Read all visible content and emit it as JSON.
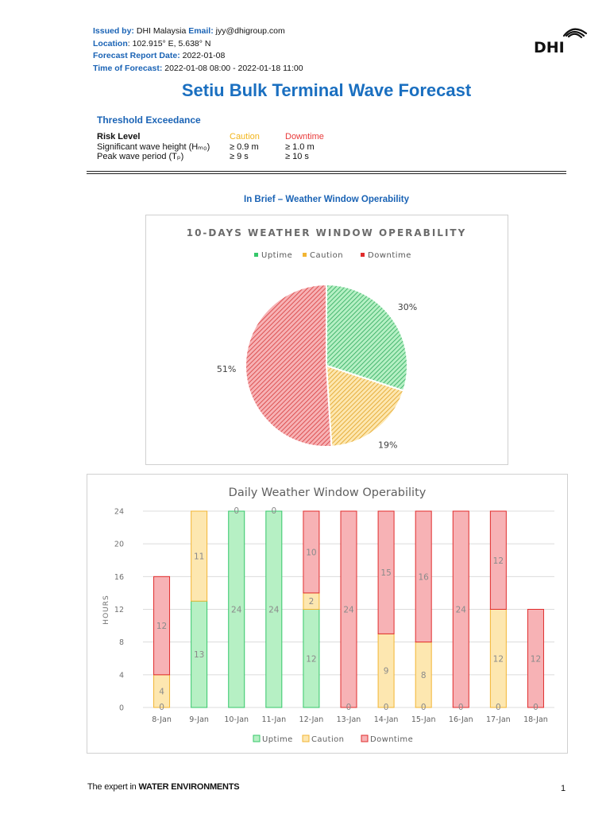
{
  "header": {
    "issued_by_label": "Issued by:",
    "issued_by": " DHI Malaysia ",
    "email_label": "Email:",
    "email": " jyy@dhigroup.com",
    "location_label": "Location",
    "location": ": 102.915° E, 5.638° N",
    "report_date_label": "Forecast Report Date:",
    "report_date": " 2022-01-08",
    "time_label": "Time of Forecast:",
    "time": " 2022-01-08 08:00 - 2022-01-18 11:00"
  },
  "logo": {
    "text": "DHI"
  },
  "title": "Setiu Bulk Terminal Wave Forecast",
  "threshold": {
    "title": "Threshold Exceedance",
    "head": {
      "risk": "Risk Level",
      "caution": "Caution",
      "downtime": "Downtime"
    },
    "rows": [
      {
        "param": "Significant wave height (Hₘ₀)",
        "caution": "≥ 0.9 m",
        "downtime": "≥ 1.0 m"
      },
      {
        "param": "Peak wave period (Tₚ)",
        "caution": "≥ 9 s",
        "downtime": "≥ 10 s"
      }
    ]
  },
  "brief_title": "In Brief – Weather Window Operability",
  "colors": {
    "uptime_fill": "#b6f0c4",
    "uptime_stroke": "#35c76a",
    "uptime_hatch": "#2aa85a",
    "caution_fill": "#fde7b0",
    "caution_stroke": "#f2b533",
    "caution_hatch": "#e0a020",
    "downtime_fill": "#f7b2b5",
    "downtime_stroke": "#e02c2c",
    "downtime_hatch": "#d63a3a"
  },
  "chart_data": [
    {
      "type": "pie",
      "title": "10-DAYS WEATHER WINDOW OPERABILITY",
      "legend_position": "top",
      "slices": [
        {
          "name": "Uptime",
          "value": 30,
          "label": "30%"
        },
        {
          "name": "Caution",
          "value": 19,
          "label": "19%"
        },
        {
          "name": "Downtime",
          "value": 51,
          "label": "51%"
        }
      ]
    },
    {
      "type": "bar",
      "stacked": true,
      "title": "Daily Weather Window Operability",
      "ylabel": "HOURS",
      "xlabel": "",
      "ylim": [
        0,
        24
      ],
      "yticks": [
        "0",
        "4",
        "8",
        "12",
        "16",
        "20",
        "24"
      ],
      "grid": true,
      "legend_position": "bottom",
      "categories": [
        "8-Jan",
        "9-Jan",
        "10-Jan",
        "11-Jan",
        "12-Jan",
        "13-Jan",
        "14-Jan",
        "15-Jan",
        "16-Jan",
        "17-Jan",
        "18-Jan"
      ],
      "series": [
        {
          "name": "Uptime",
          "values": [
            0,
            13,
            24,
            24,
            12,
            0,
            0,
            0,
            0,
            0,
            0
          ]
        },
        {
          "name": "Caution",
          "values": [
            4,
            11,
            0,
            0,
            2,
            0,
            9,
            8,
            0,
            12,
            0
          ]
        },
        {
          "name": "Downtime",
          "values": [
            12,
            0,
            0,
            0,
            10,
            24,
            15,
            16,
            24,
            12,
            12
          ]
        }
      ]
    }
  ],
  "footer": {
    "prefix": "The expert in ",
    "bold": "WATER ENVIRONMENTS"
  },
  "page_number": "1"
}
